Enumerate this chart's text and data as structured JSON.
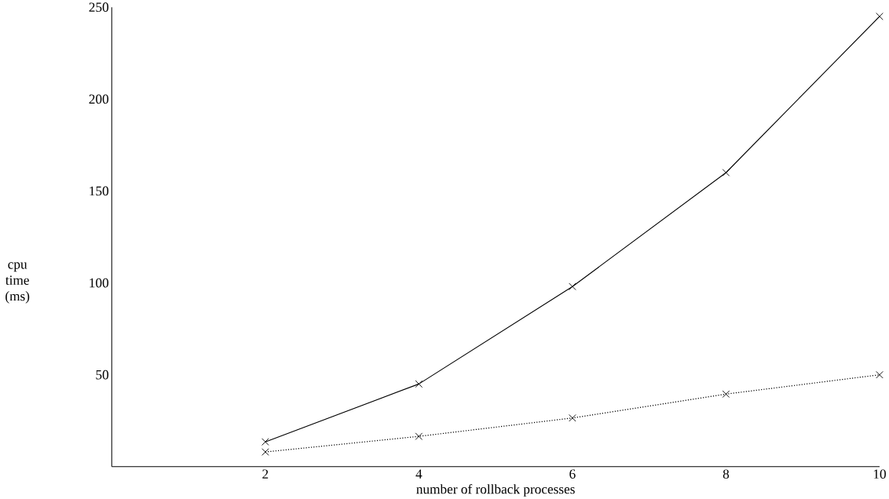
{
  "chart_data": {
    "type": "line",
    "xlabel": "number of rollback processes",
    "ylabel": "cpu time (ms)",
    "x": [
      2,
      4,
      6,
      8,
      10
    ],
    "series": [
      {
        "color": "#000000",
        "values": [
          13.5,
          45,
          98,
          160,
          245
        ],
        "line_style": "solid"
      },
      {
        "color": "#000000",
        "values": [
          8,
          16.5,
          26.5,
          39.5,
          50
        ],
        "line_style": "dotted"
      }
    ],
    "xlim": [
      0,
      10
    ],
    "ylim": [
      0,
      250
    ],
    "xticks": [
      2,
      4,
      6,
      8,
      10
    ],
    "yticks": [
      50,
      100,
      150,
      200,
      250
    ],
    "marker": "cross",
    "grid": false
  }
}
